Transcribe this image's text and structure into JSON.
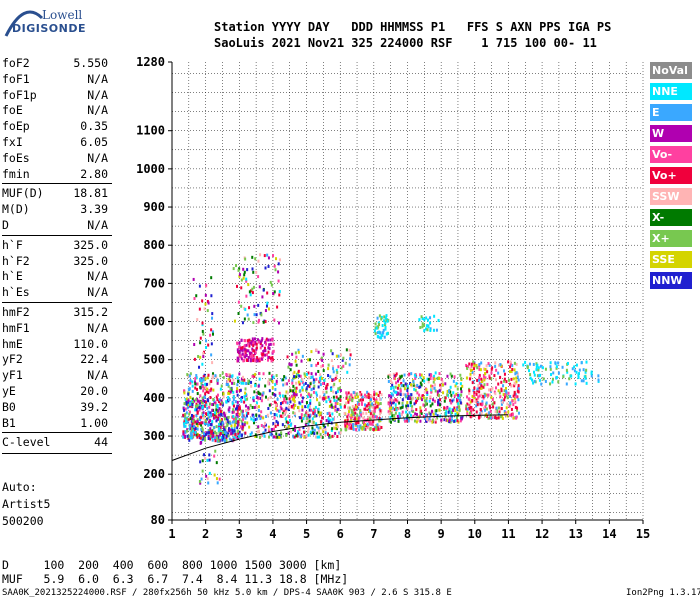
{
  "logo": {
    "line1": "Lowell",
    "line2": "DIGISONDE"
  },
  "header": {
    "line1": "Station YYYY DAY   DDD HHMMSS P1   FFS S AXN PPS IGA PS",
    "line2": "SaoLuis 2021 Nov21 325 224000 RSF    1 715 100 00- 11"
  },
  "params": [
    {
      "k": "foF2",
      "v": "5.550"
    },
    {
      "k": "foF1",
      "v": "N/A"
    },
    {
      "k": "foF1p",
      "v": "N/A"
    },
    {
      "k": "foE",
      "v": "N/A"
    },
    {
      "k": "foEp",
      "v": "0.35"
    },
    {
      "k": "fxI",
      "v": "6.05"
    },
    {
      "k": "foEs",
      "v": "N/A"
    },
    {
      "k": "fmin",
      "v": "2.80"
    },
    {
      "k": "MUF(D)",
      "v": "18.81"
    },
    {
      "k": "M(D)",
      "v": "3.39"
    },
    {
      "k": "D",
      "v": "N/A"
    },
    {
      "k": "h`F",
      "v": "325.0"
    },
    {
      "k": "h`F2",
      "v": "325.0"
    },
    {
      "k": "h`E",
      "v": "N/A"
    },
    {
      "k": "h`Es",
      "v": "N/A"
    },
    {
      "k": "hmF2",
      "v": "315.2"
    },
    {
      "k": "hmF1",
      "v": "N/A"
    },
    {
      "k": "hmE",
      "v": "110.0"
    },
    {
      "k": "yF2",
      "v": "22.4"
    },
    {
      "k": "yF1",
      "v": "N/A"
    },
    {
      "k": "yE",
      "v": "20.0"
    },
    {
      "k": "B0",
      "v": "39.2"
    },
    {
      "k": "B1",
      "v": "1.00"
    },
    {
      "k": "C-level",
      "v": "44"
    }
  ],
  "auto": {
    "label": "Auto:",
    "artist": "Artist5",
    "code": "500200"
  },
  "legend": [
    {
      "label": "NoVal",
      "color": "#8c8c8c"
    },
    {
      "label": "NNE",
      "color": "#00e8ff"
    },
    {
      "label": "E",
      "color": "#3aa8ff"
    },
    {
      "label": "W",
      "color": "#b000b0"
    },
    {
      "label": "Vo-",
      "color": "#ff40a0"
    },
    {
      "label": "Vo+",
      "color": "#f0003c"
    },
    {
      "label": "SSW",
      "color": "#ffb4b4"
    },
    {
      "label": "X-",
      "color": "#007a00"
    },
    {
      "label": "X+",
      "color": "#78c850"
    },
    {
      "label": "SSE",
      "color": "#d4d400"
    },
    {
      "label": "NNW",
      "color": "#2020d0"
    }
  ],
  "bottom": {
    "d_row": "D     100  200  400  600  800 1000 1500 3000 [km]",
    "muf_row": "MUF   5.9  6.0  6.3  6.7  7.4  8.4 11.3 18.8 [MHz]"
  },
  "footer": {
    "left": "SAA0K_2021325224000.RSF / 280fx256h 50 kHz 5.0 km / DPS-4 SAA0K 903 / 2.6 S 315.8 E",
    "right": "Ion2Png 1.3.17"
  },
  "chart_data": {
    "type": "scatter",
    "xlim": [
      1,
      15
    ],
    "ylim": [
      80,
      1280
    ],
    "x_ticks": [
      1,
      2,
      3,
      4,
      5,
      6,
      7,
      8,
      9,
      10,
      11,
      12,
      13,
      14,
      15
    ],
    "y_ticks": [
      80,
      200,
      300,
      400,
      500,
      600,
      700,
      800,
      900,
      1000,
      1100,
      1280
    ],
    "grid": true,
    "clusters": [
      {
        "x0": 1.3,
        "x1": 6.0,
        "y0": 300,
        "y1": 470,
        "n": 900,
        "mix": "all"
      },
      {
        "x0": 1.3,
        "x1": 3.0,
        "y0": 290,
        "y1": 400,
        "n": 300,
        "mix": "blue"
      },
      {
        "x0": 6.1,
        "x1": 7.2,
        "y0": 320,
        "y1": 420,
        "n": 280,
        "mix": "red"
      },
      {
        "x0": 7.4,
        "x1": 9.6,
        "y0": 340,
        "y1": 470,
        "n": 420,
        "mix": "all"
      },
      {
        "x0": 9.7,
        "x1": 11.3,
        "y0": 350,
        "y1": 500,
        "n": 320,
        "mix": "red"
      },
      {
        "x0": 2.9,
        "x1": 4.0,
        "y0": 500,
        "y1": 560,
        "n": 160,
        "mix": "purple"
      },
      {
        "x0": 11.4,
        "x1": 13.7,
        "y0": 440,
        "y1": 500,
        "n": 90,
        "mix": "cyan"
      },
      {
        "x0": 2.8,
        "x1": 4.2,
        "y0": 600,
        "y1": 780,
        "n": 90,
        "mix": "all"
      },
      {
        "x0": 7.0,
        "x1": 7.4,
        "y0": 560,
        "y1": 620,
        "n": 45,
        "mix": "cyan"
      },
      {
        "x0": 8.3,
        "x1": 8.9,
        "y0": 580,
        "y1": 620,
        "n": 25,
        "mix": "cyan"
      },
      {
        "x0": 1.6,
        "x1": 2.2,
        "y0": 420,
        "y1": 720,
        "n": 60,
        "mix": "all"
      },
      {
        "x0": 4.4,
        "x1": 6.3,
        "y0": 470,
        "y1": 530,
        "n": 60,
        "mix": "all"
      },
      {
        "x0": 1.8,
        "x1": 2.4,
        "y0": 180,
        "y1": 290,
        "n": 25,
        "mix": "all"
      }
    ],
    "trace": [
      [
        1,
        236
      ],
      [
        2,
        268
      ],
      [
        3,
        292
      ],
      [
        4,
        312
      ],
      [
        5,
        326
      ],
      [
        6,
        336
      ],
      [
        7,
        342
      ],
      [
        8,
        348
      ],
      [
        9,
        352
      ],
      [
        10,
        354
      ],
      [
        11,
        356
      ]
    ]
  }
}
